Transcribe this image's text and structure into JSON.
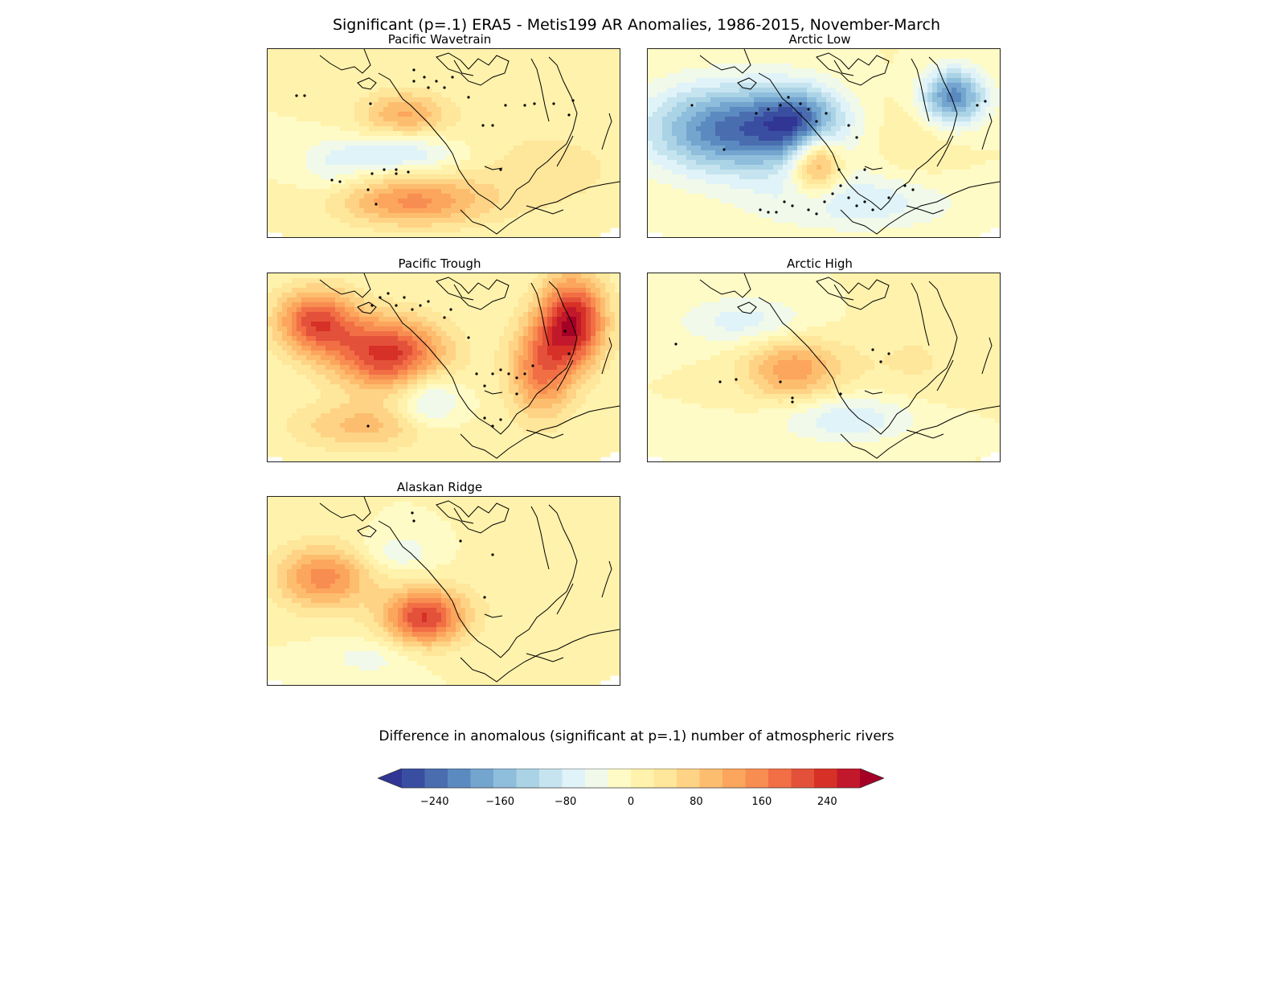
{
  "figure": {
    "title": "Significant (p=.1) ERA5 - Metis199 AR Anomalies, 1986-2015, November-March"
  },
  "colors": {
    "levels": [
      "#313695",
      "#3a4ea1",
      "#4a6db0",
      "#5b8ac0",
      "#73a5cf",
      "#8fbedc",
      "#abd3e6",
      "#c6e4ef",
      "#e0f3f8",
      "#f0f9ea",
      "#fffbc6",
      "#fff2ac",
      "#fee69a",
      "#fed385",
      "#fdbd6f",
      "#fca55d",
      "#f88d51",
      "#f26e44",
      "#e4513a",
      "#d73027",
      "#c2182b",
      "#a50026"
    ],
    "coast": "#000000",
    "stipple": "#000000"
  },
  "panels": [
    {
      "title": "Pacific Wavetrain",
      "pattern": "wavetrain"
    },
    {
      "title": "Arctic Low",
      "pattern": "arcticlow"
    },
    {
      "title": "Pacific Trough",
      "pattern": "trough"
    },
    {
      "title": "Arctic High",
      "pattern": "arctichigh"
    },
    {
      "title": "Alaskan Ridge",
      "pattern": "ridge"
    }
  ],
  "colorbar": {
    "title": "Difference in anomalous (significant at p=.1) number of atmospheric rivers",
    "min": -300,
    "max": 300,
    "tick_values": [
      -240,
      -160,
      -80,
      0,
      80,
      160,
      240
    ],
    "tick_labels": [
      "−240",
      "−160",
      "−80",
      "0",
      "80",
      "160",
      "240"
    ],
    "extend": "both"
  }
}
